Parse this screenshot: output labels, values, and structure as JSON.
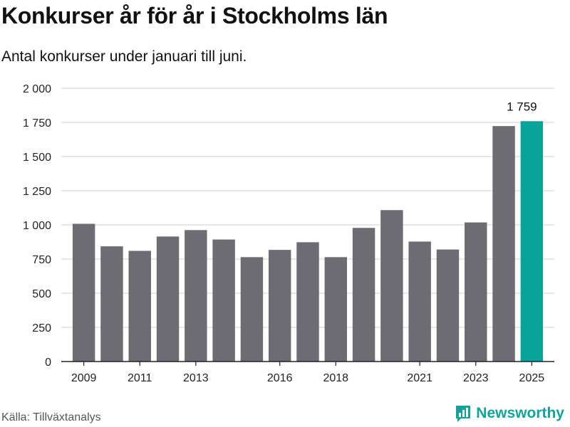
{
  "header": {
    "title": "Konkurser år för år i Stockholms län",
    "subtitle": "Antal konkurser under januari till juni."
  },
  "footer": {
    "source": "Källa: Tillväxtanalys",
    "brand": "Newsworthy"
  },
  "colors": {
    "bar": "#6d6c72",
    "highlight": "#0aa39a",
    "grid": "#d9d9d9",
    "brand": "#14a39a"
  },
  "chart_data": {
    "type": "bar",
    "categories": [
      "2009",
      "2010",
      "2011",
      "2012",
      "2013",
      "2014",
      "2015",
      "2016",
      "2017",
      "2018",
      "2019",
      "2020",
      "2021",
      "2022",
      "2023",
      "2024",
      "2025"
    ],
    "values": [
      1008,
      843,
      810,
      915,
      962,
      893,
      764,
      817,
      873,
      764,
      978,
      1108,
      878,
      820,
      1018,
      1723,
      1759
    ],
    "highlight_index": 16,
    "highlight_label": "1 759",
    "x_tick_labels": [
      "2009",
      "2011",
      "2013",
      "2016",
      "2018",
      "2021",
      "2023",
      "2025"
    ],
    "y_ticks": [
      0,
      250,
      500,
      750,
      1000,
      1250,
      1500,
      1750,
      2000
    ],
    "y_tick_labels": [
      "0",
      "250",
      "500",
      "750",
      "1 000",
      "1 250",
      "1 500",
      "1 750",
      "2 000"
    ],
    "ylim": [
      0,
      2000
    ],
    "grid": true
  }
}
